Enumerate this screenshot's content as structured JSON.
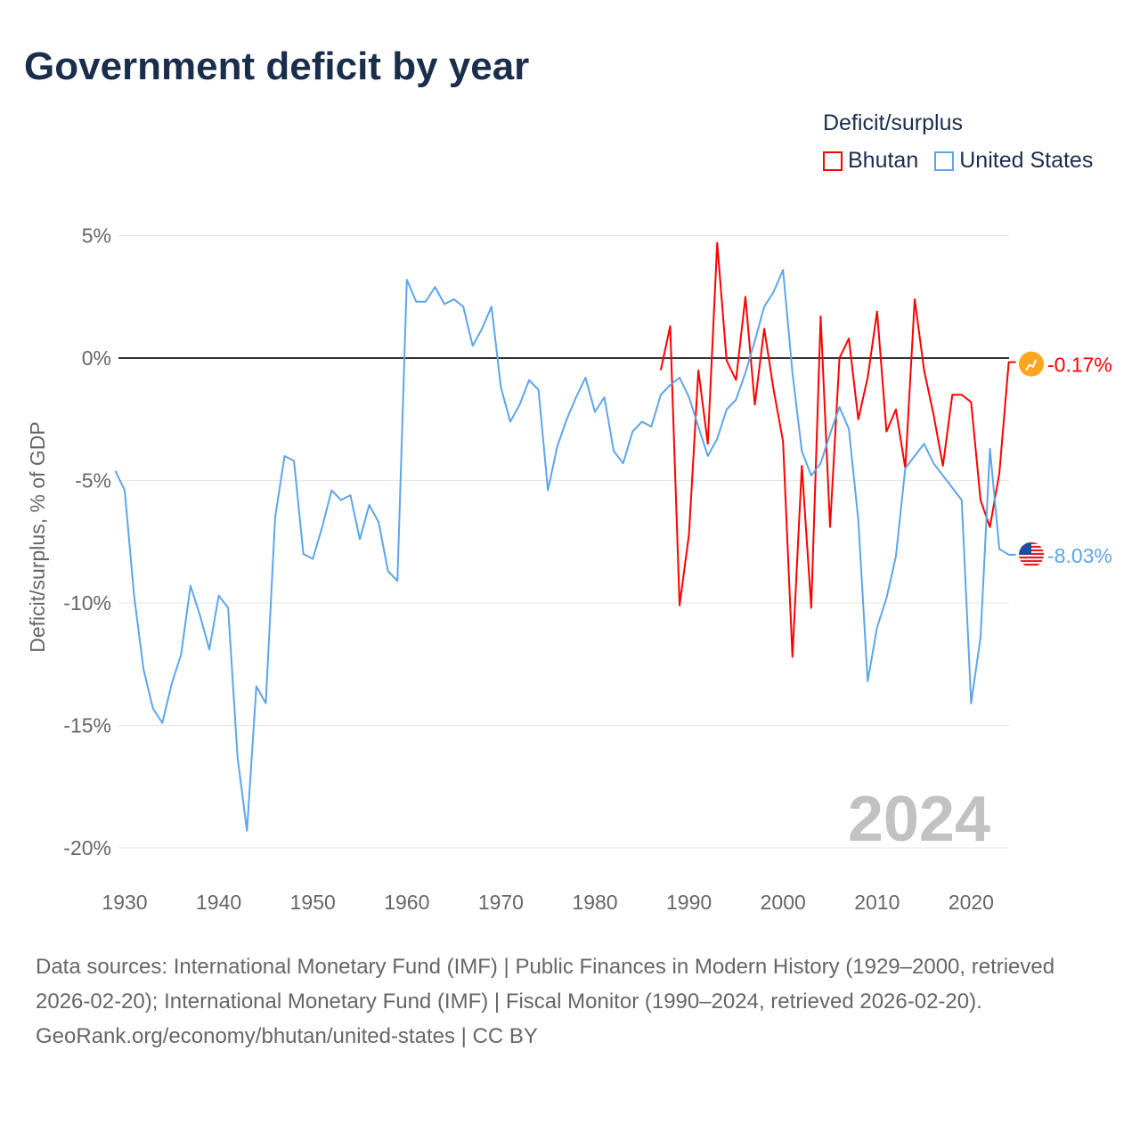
{
  "title": "Government deficit by year",
  "legend": {
    "title": "Deficit/surplus",
    "items": [
      {
        "label": "Bhutan",
        "color": "#ff0000"
      },
      {
        "label": "United States",
        "color": "#5da5ea"
      }
    ]
  },
  "year_watermark": "2024",
  "footer": {
    "sources": "Data sources: International Monetary Fund (IMF) | Public Finances in Modern History (1929–2000, retrieved 2026-02-20); International Monetary Fund (IMF) | Fiscal Monitor (1990–2024, retrieved 2026-02-20).",
    "link": "GeoRank.org/economy/bhutan/united-states | CC BY"
  },
  "chart_data": {
    "type": "line",
    "title": "Government deficit by year",
    "xlabel": "",
    "ylabel": "Deficit/surplus, % of GDP",
    "ylim": [
      -20,
      5
    ],
    "xlim": [
      1929,
      2024
    ],
    "yticks": [
      5,
      0,
      -5,
      -10,
      -15,
      -20
    ],
    "ytick_labels": [
      "5%",
      "0%",
      "-5%",
      "-10%",
      "-15%",
      "-20%"
    ],
    "xticks": [
      1930,
      1940,
      1950,
      1960,
      1970,
      1980,
      1990,
      2000,
      2010,
      2020
    ],
    "xtick_labels": [
      "1930",
      "1940",
      "1950",
      "1960",
      "1970",
      "1980",
      "1990",
      "2000",
      "2010",
      "2020"
    ],
    "grid": true,
    "legend_position": "top-right",
    "series": [
      {
        "name": "Bhutan",
        "color": "#ff0000",
        "end_label": "-0.17%",
        "start_year": 1987,
        "values": [
          -0.5,
          1.3,
          -10.1,
          -7.2,
          -0.5,
          -3.5,
          4.7,
          -0.1,
          -0.9,
          2.5,
          -1.9,
          1.2,
          -1.3,
          -3.4,
          -12.2,
          -4.4,
          -10.2,
          1.7,
          -6.9,
          0.0,
          0.8,
          -2.5,
          -0.8,
          1.9,
          -3.0,
          -2.1,
          -4.5,
          2.4,
          -0.5,
          -2.3,
          -4.4,
          -1.5,
          -1.5,
          -1.8,
          -5.8,
          -6.9,
          -4.7,
          -0.17
        ]
      },
      {
        "name": "United States",
        "color": "#5da5ea",
        "end_label": "-8.03%",
        "start_year": 1929,
        "values": [
          -4.6,
          -5.4,
          -9.7,
          -12.7,
          -14.3,
          -14.9,
          -13.3,
          -12.1,
          -9.3,
          -10.5,
          -11.9,
          -9.7,
          -10.2,
          -16.3,
          -19.3,
          -13.4,
          -14.1,
          -6.5,
          -4.0,
          -4.2,
          -8.0,
          -8.2,
          -6.9,
          -5.4,
          -5.8,
          -5.6,
          -7.4,
          -6.0,
          -6.7,
          -8.7,
          -9.1,
          3.2,
          2.3,
          2.3,
          2.9,
          2.2,
          2.4,
          2.1,
          0.5,
          1.2,
          2.1,
          -1.2,
          -2.6,
          -1.9,
          -0.9,
          -1.3,
          -5.4,
          -3.6,
          -2.5,
          -1.6,
          -0.8,
          -2.2,
          -1.6,
          -3.8,
          -4.3,
          -3.0,
          -2.6,
          -2.8,
          -1.5,
          -1.1,
          -0.8,
          -1.6,
          -2.8,
          -4.0,
          -3.3,
          -2.1,
          -1.7,
          -0.6,
          0.7,
          2.1,
          2.7,
          3.6,
          -0.6,
          -3.8,
          -4.8,
          -4.3,
          -3.1,
          -2.0,
          -2.9,
          -6.6,
          -13.2,
          -11.0,
          -9.8,
          -8.1,
          -4.5,
          -4.0,
          -3.5,
          -4.3,
          -4.8,
          -5.3,
          -5.8,
          -14.1,
          -11.4,
          -3.7,
          -7.8,
          -8.03
        ]
      }
    ]
  }
}
